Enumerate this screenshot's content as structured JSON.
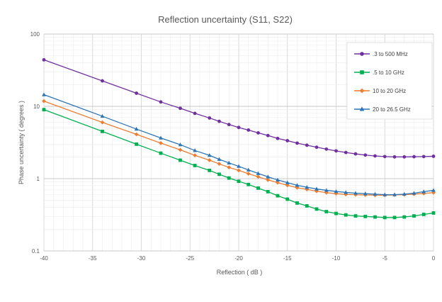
{
  "chart_data": {
    "type": "scatter",
    "title": "Reflection uncertainty (S11, S22)",
    "xlabel": "Reflection ( dB )",
    "ylabel": "Phase uncertainty ( degrees )",
    "xlim": [
      -40,
      0
    ],
    "ylim": [
      0.1,
      100
    ],
    "y_scale": "log",
    "x_ticks": [
      -40,
      -35,
      -30,
      -25,
      -20,
      -15,
      -10,
      -5,
      0
    ],
    "y_ticks": [
      0.1,
      1,
      10,
      100
    ],
    "grid": true,
    "legend_position": "top-right",
    "series": [
      {
        "name": ".3 to 500 MHz",
        "color": "#7030a0",
        "marker": "circle",
        "x": [
          -40,
          -34,
          -30.5,
          -28,
          -26,
          -24.5,
          -23,
          -22,
          -21,
          -20,
          -19,
          -18,
          -17,
          -16,
          -15,
          -14,
          -13,
          -12,
          -11,
          -10,
          -9,
          -8,
          -7,
          -6,
          -5,
          -4,
          -3,
          -2,
          -1,
          0
        ],
        "y": [
          44,
          22.5,
          15.2,
          11.5,
          9.4,
          8.0,
          6.9,
          6.2,
          5.6,
          5.1,
          4.7,
          4.3,
          3.95,
          3.6,
          3.35,
          3.1,
          2.9,
          2.72,
          2.56,
          2.42,
          2.3,
          2.2,
          2.12,
          2.06,
          2.02,
          2.0,
          2.0,
          2.01,
          2.02,
          2.04
        ]
      },
      {
        "name": ".5 to 10 GHz",
        "color": "#00b050",
        "marker": "square",
        "x": [
          -40,
          -34,
          -30.5,
          -28,
          -26,
          -24.5,
          -23,
          -22,
          -21,
          -20,
          -19,
          -18,
          -17,
          -16,
          -15,
          -14,
          -13,
          -12,
          -11,
          -10,
          -9,
          -8,
          -7,
          -6,
          -5,
          -4,
          -3,
          -2,
          -1,
          0
        ],
        "y": [
          9.0,
          4.5,
          3.0,
          2.25,
          1.8,
          1.52,
          1.3,
          1.15,
          1.02,
          0.92,
          0.83,
          0.74,
          0.66,
          0.58,
          0.52,
          0.46,
          0.42,
          0.38,
          0.35,
          0.33,
          0.315,
          0.305,
          0.3,
          0.295,
          0.29,
          0.29,
          0.295,
          0.305,
          0.32,
          0.335
        ]
      },
      {
        "name": "10 to 20 GHz",
        "color": "#ed7d31",
        "marker": "diamond",
        "x": [
          -40,
          -34,
          -30.5,
          -28,
          -26,
          -24.5,
          -23,
          -22,
          -21,
          -20,
          -19,
          -18,
          -17,
          -16,
          -15,
          -14,
          -13,
          -12,
          -11,
          -10,
          -9,
          -8,
          -7,
          -6,
          -5,
          -4,
          -3,
          -2,
          -1,
          0
        ],
        "y": [
          11.8,
          6.0,
          4.1,
          3.1,
          2.5,
          2.1,
          1.8,
          1.6,
          1.43,
          1.3,
          1.17,
          1.06,
          0.96,
          0.88,
          0.81,
          0.75,
          0.71,
          0.67,
          0.64,
          0.62,
          0.605,
          0.6,
          0.595,
          0.59,
          0.59,
          0.595,
          0.6,
          0.61,
          0.625,
          0.64
        ]
      },
      {
        "name": "20 to 26.5 GHz",
        "color": "#2e75b6",
        "marker": "triangle",
        "x": [
          -40,
          -34,
          -30.5,
          -28,
          -26,
          -24.5,
          -23,
          -22,
          -21,
          -20,
          -19,
          -18,
          -17,
          -16,
          -15,
          -14,
          -13,
          -12,
          -11,
          -10,
          -9,
          -8,
          -7,
          -6,
          -5,
          -4,
          -3,
          -2,
          -1,
          0
        ],
        "y": [
          14.5,
          7.3,
          4.85,
          3.65,
          2.95,
          2.45,
          2.1,
          1.85,
          1.65,
          1.48,
          1.32,
          1.18,
          1.06,
          0.96,
          0.88,
          0.81,
          0.76,
          0.72,
          0.69,
          0.665,
          0.645,
          0.63,
          0.62,
          0.61,
          0.6,
          0.6,
          0.61,
          0.63,
          0.66,
          0.69
        ]
      }
    ]
  }
}
